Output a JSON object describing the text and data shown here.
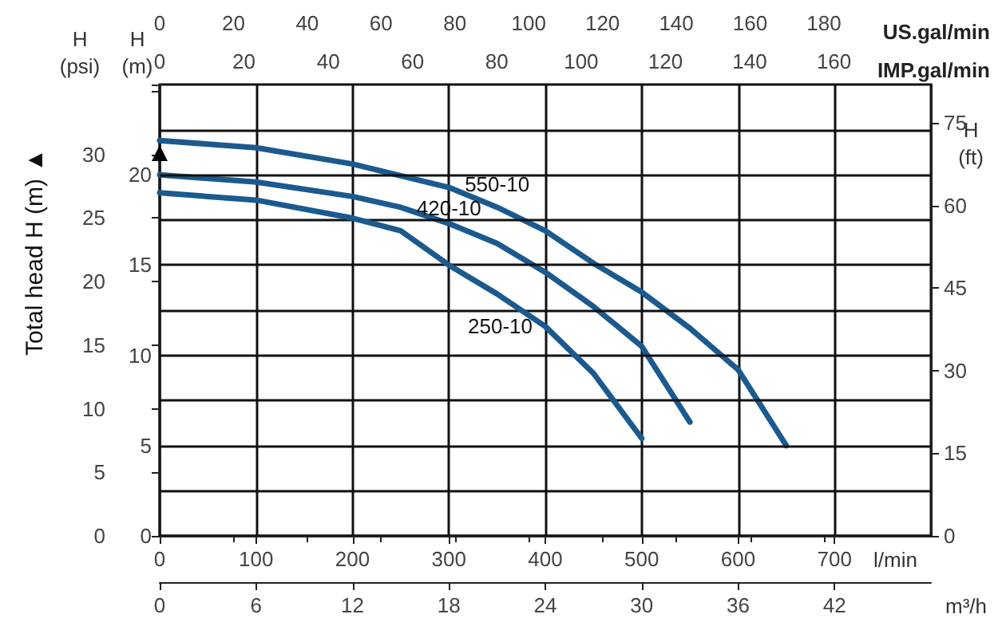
{
  "chart_data": [
    {
      "type": "line",
      "xlabel": "l/min",
      "ylabel": "H\n(m)",
      "y2label": "H\n(psi)",
      "y3label": "H\n(ft)",
      "x2label": "IMP.gal/min",
      "annotations": [
        "Total head H (m) ▲"
      ],
      "xlim": [
        0,
        800
      ],
      "xticks": [
        0,
        100,
        200,
        300,
        400,
        500,
        600,
        700
      ],
      "x2lim": [
        0,
        183
      ],
      "x2ticks": [
        0,
        20,
        40,
        60,
        80,
        100,
        120,
        140,
        160
      ],
      "ylim": [
        0,
        25
      ],
      "yticks": [
        0,
        {
          "value": 2.5,
          "label": null
        },
        5,
        {
          "value": 7.5,
          "label": null
        },
        10,
        {
          "value": 12.5,
          "label": null
        },
        15,
        {
          "value": 17.5,
          "label": null
        },
        20,
        {
          "value": 22.5,
          "label": null
        }
      ],
      "y2lim": [
        0,
        35.5
      ],
      "y2ticks": [
        0,
        5,
        10,
        15,
        20,
        25,
        30
      ],
      "y3lim": [
        0,
        82
      ],
      "y3ticks": [
        0,
        15,
        30,
        45,
        60,
        75
      ],
      "grid": true,
      "marker": "none",
      "line_style": "solid",
      "series": [
        {
          "name": "550-10",
          "color": "#1b5a8e",
          "x": [
            0,
            100,
            200,
            300,
            350,
            400,
            450,
            500,
            550,
            600,
            650
          ],
          "values": [
            21.9,
            21.5,
            20.6,
            19.3,
            18.2,
            16.9,
            15.1,
            13.5,
            11.5,
            9.2,
            5.0
          ]
        },
        {
          "name": "420-10",
          "color": "#1b5a8e",
          "x": [
            0,
            100,
            200,
            250,
            300,
            350,
            400,
            450,
            500,
            550
          ],
          "values": [
            20.0,
            19.6,
            18.8,
            18.2,
            17.3,
            16.2,
            14.6,
            12.7,
            10.5,
            6.3
          ]
        }
      ]
    },
    {
      "type": "line",
      "xlabel": "m³/h",
      "x2label": "US.gal/min",
      "xlim": [
        0,
        48
      ],
      "xticks": [
        0,
        6,
        12,
        18,
        24,
        30,
        36,
        42
      ],
      "x2lim": [
        0,
        209
      ],
      "x2ticks": [
        0,
        20,
        40,
        60,
        80,
        100,
        120,
        140,
        160,
        180
      ],
      "ylim": [
        0,
        25
      ],
      "tick_labels": "x",
      "marker": "none",
      "line_style": "solid",
      "series": [
        {
          "name": "250-10",
          "color": "#1b5a8e",
          "x": [
            0,
            6,
            12,
            15,
            18,
            21,
            24,
            27,
            30
          ],
          "values": [
            19.0,
            18.6,
            17.6,
            16.9,
            15.0,
            13.4,
            11.6,
            9.0,
            5.4
          ]
        }
      ]
    }
  ]
}
